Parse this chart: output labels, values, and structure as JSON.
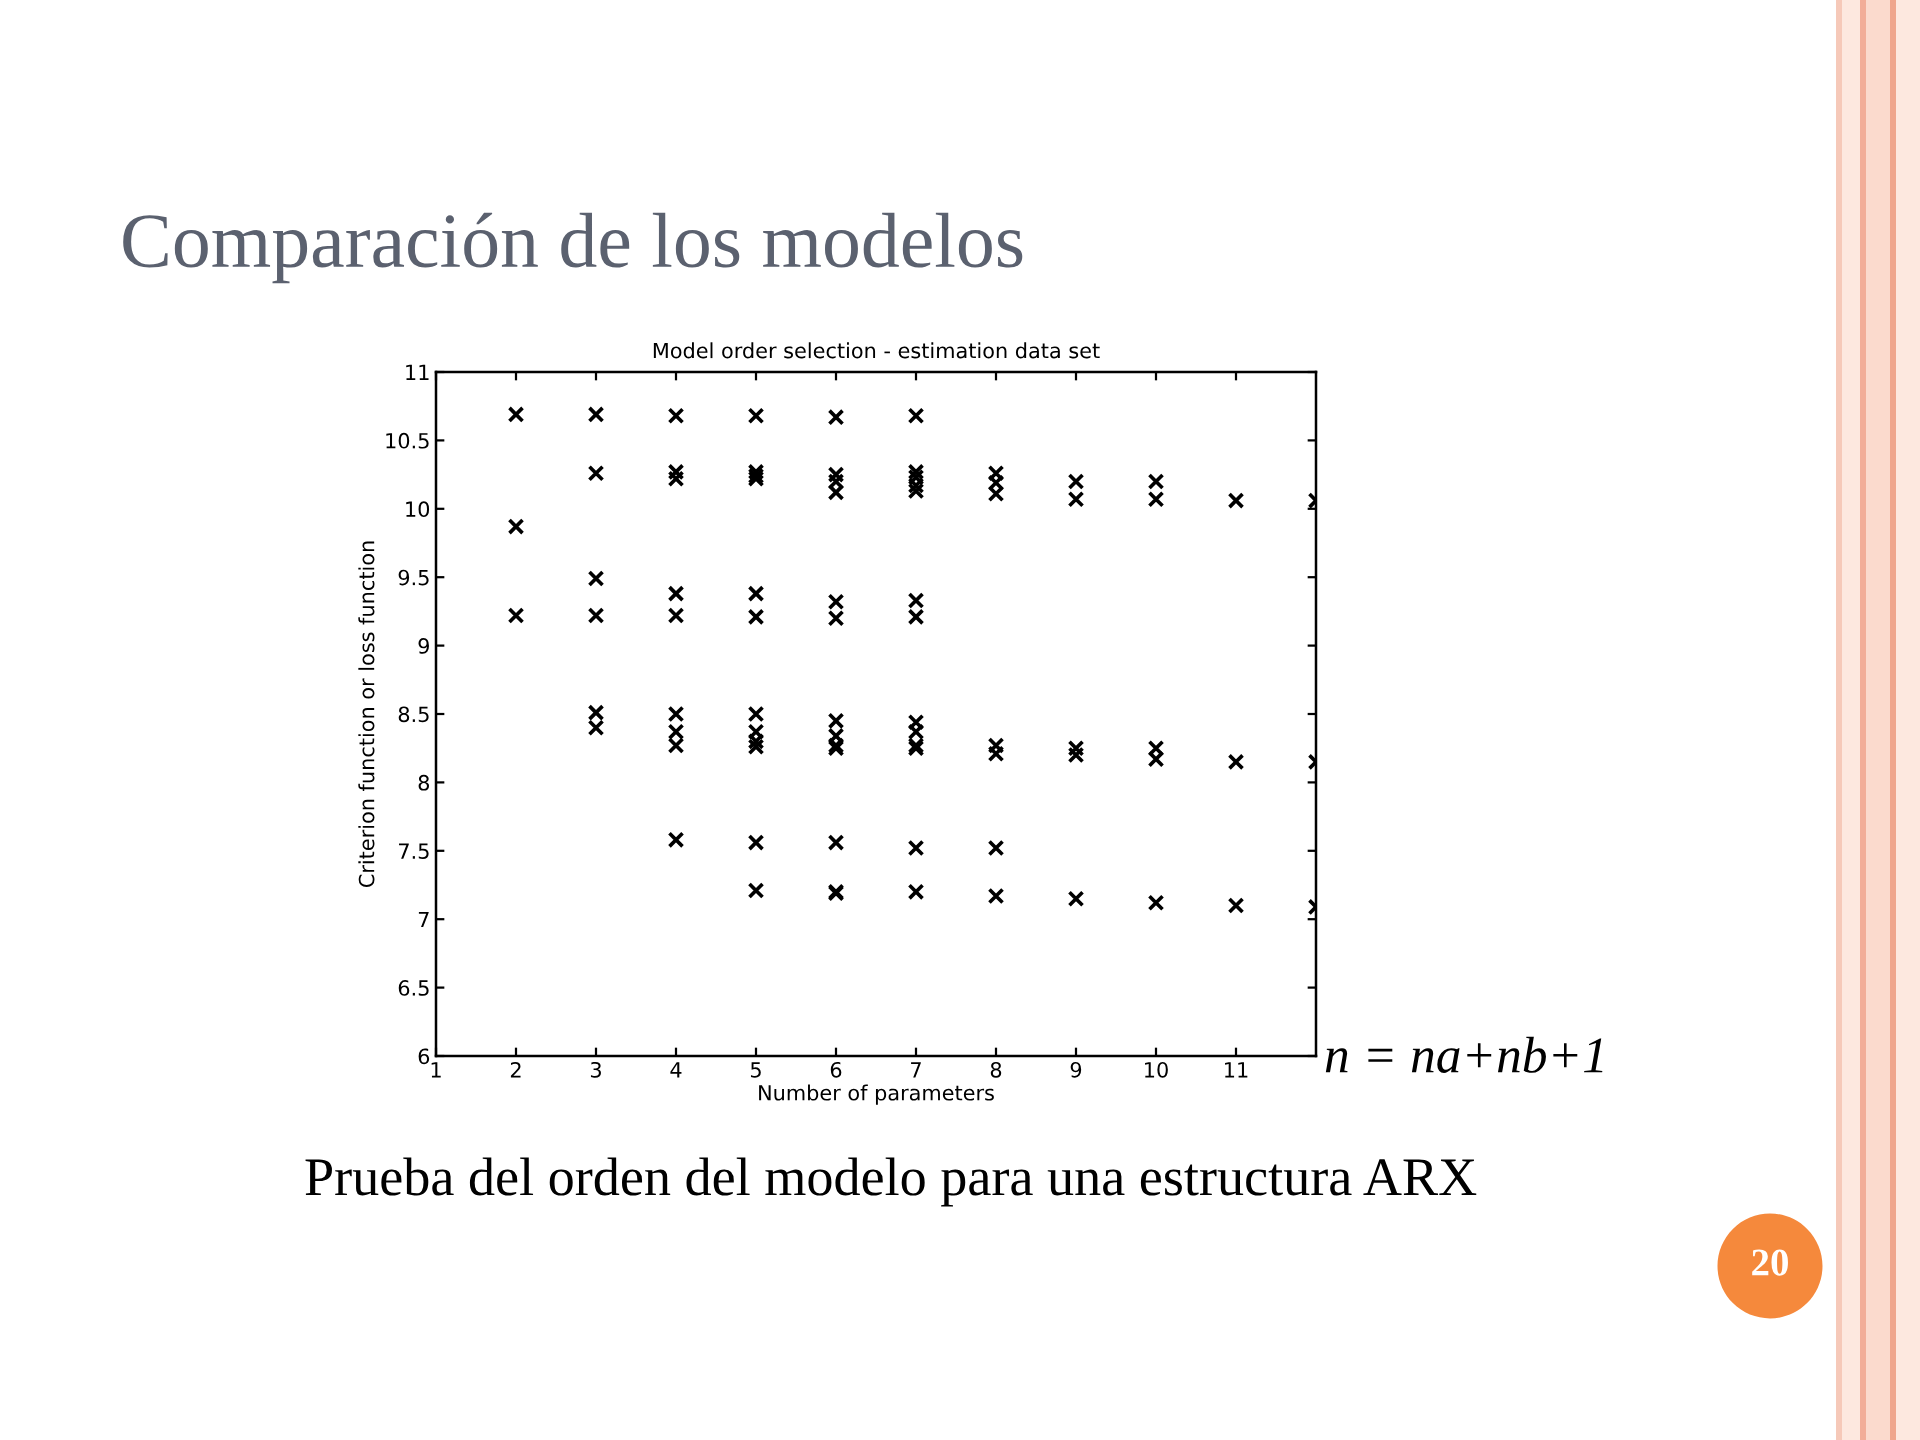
{
  "chart_data": {
    "type": "scatter",
    "title": "Comparación de los modelos",
    "subtitle": "Model order selection - estimation data set",
    "xlabel": "Number of parameters",
    "ylabel": "Criterion function or loss function",
    "series": [
      {
        "color": "#000000",
        "x": [
          2,
          2,
          2,
          3,
          3,
          3,
          3,
          3,
          3,
          4,
          4,
          4,
          4,
          4,
          4,
          4,
          4,
          4,
          5,
          5,
          5,
          5,
          5,
          5,
          5,
          5,
          5,
          5,
          5,
          5,
          6,
          6,
          6,
          6,
          6,
          6,
          6,
          6,
          6,
          6,
          6,
          6,
          6,
          7,
          7,
          7,
          7,
          7,
          7,
          7,
          7,
          7,
          7,
          7,
          7,
          7,
          8,
          8,
          8,
          8,
          8,
          8,
          8,
          9,
          9,
          9,
          9,
          9,
          10,
          10,
          10,
          10,
          10,
          11,
          11,
          11,
          12,
          12,
          12
        ],
        "values": [
          10.69,
          9.87,
          9.22,
          10.69,
          10.26,
          9.49,
          9.22,
          8.51,
          8.4,
          10.68,
          10.27,
          10.22,
          9.38,
          9.22,
          8.5,
          8.37,
          8.27,
          7.58,
          10.68,
          10.27,
          10.24,
          10.22,
          9.38,
          9.21,
          8.5,
          8.37,
          8.3,
          8.26,
          7.56,
          7.21,
          10.67,
          10.25,
          10.2,
          10.12,
          9.32,
          9.2,
          8.45,
          8.34,
          8.27,
          8.25,
          7.56,
          7.2,
          7.19,
          10.68,
          10.27,
          10.23,
          10.17,
          10.13,
          9.33,
          9.21,
          8.44,
          8.37,
          8.27,
          8.25,
          7.52,
          7.2,
          10.26,
          10.19,
          10.11,
          8.27,
          8.21,
          7.52,
          7.17,
          10.2,
          10.07,
          8.25,
          8.2,
          7.15,
          10.2,
          10.07,
          8.25,
          8.17,
          7.12,
          10.06,
          8.15,
          7.1,
          10.06,
          8.15,
          7.09
        ]
      }
    ],
    "marker": "cross",
    "xlim": [
      1,
      12
    ],
    "ylim": [
      6,
      11
    ],
    "xticks": [
      1,
      2,
      3,
      4,
      5,
      6,
      7,
      8,
      9,
      10,
      11
    ],
    "yticks": [
      6,
      6.5,
      7,
      7.5,
      8,
      8.5,
      9,
      9.5,
      10,
      10.5,
      11
    ],
    "annotations": [
      "n = na+nb+1",
      "Prueba del orden del modelo para una estructura ARX",
      "20"
    ]
  }
}
